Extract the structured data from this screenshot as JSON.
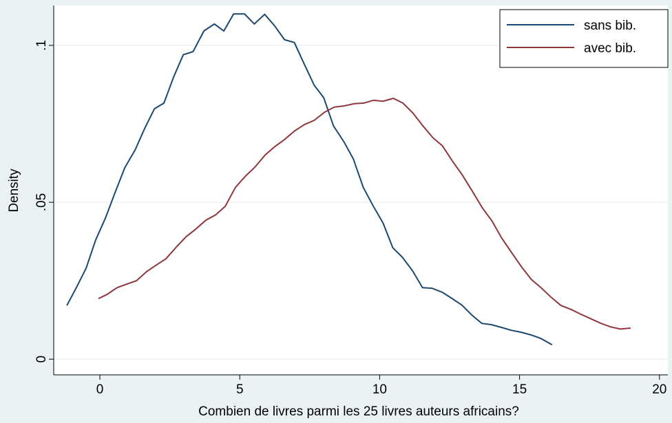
{
  "chart_data": {
    "type": "line",
    "x_label": "Combien de livres parmi les 25 livres auteurs africains?",
    "y_label": "Density",
    "xlim": [
      -1.65,
      20.3
    ],
    "xticks": [
      0,
      5,
      10,
      15,
      20
    ],
    "ylim": [
      -0.005,
      0.1127
    ],
    "yticks": [
      0,
      {
        "value": 0.05,
        "label": ".05"
      },
      {
        "value": 0.1,
        "label": ".1"
      }
    ],
    "grid": true,
    "legend": "top-right",
    "series": [
      {
        "name": "sans bib.",
        "color": "#1a476f",
        "x": [
          -1.18,
          -0.84,
          -0.49,
          -0.15,
          0.2,
          0.54,
          0.89,
          1.26,
          1.6,
          1.95,
          2.29,
          2.64,
          2.98,
          3.33,
          3.72,
          4.09,
          4.43,
          4.78,
          5.17,
          5.52,
          5.89,
          6.23,
          6.6,
          6.95,
          7.29,
          7.66,
          8.0,
          8.35,
          8.72,
          9.06,
          9.41,
          9.75,
          10.12,
          10.47,
          10.81,
          11.18,
          11.53,
          11.87,
          12.24,
          12.59,
          12.93,
          13.3,
          13.65,
          13.99,
          14.36,
          14.7,
          15.05,
          15.42,
          15.76,
          16.16
        ],
        "values": [
          0.0171,
          0.0228,
          0.029,
          0.038,
          0.045,
          0.053,
          0.061,
          0.0667,
          0.0735,
          0.0798,
          0.0816,
          0.09,
          0.097,
          0.098,
          0.1046,
          0.1068,
          0.1046,
          0.11,
          0.11,
          0.1068,
          0.1099,
          0.1064,
          0.1018,
          0.1009,
          0.0943,
          0.0873,
          0.0833,
          0.0743,
          0.0693,
          0.0638,
          0.0548,
          0.0491,
          0.0434,
          0.0355,
          0.0325,
          0.0281,
          0.0228,
          0.0226,
          0.0213,
          0.0193,
          0.0173,
          0.014,
          0.0114,
          0.011,
          0.0101,
          0.0092,
          0.0086,
          0.0077,
          0.0066,
          0.0046
        ]
      },
      {
        "name": "avec bib.",
        "color": "#90353b",
        "x": [
          -0.05,
          0.25,
          0.62,
          0.96,
          1.31,
          1.67,
          2.02,
          2.36,
          2.73,
          3.08,
          3.42,
          3.79,
          4.14,
          4.48,
          4.85,
          5.2,
          5.54,
          5.91,
          6.26,
          6.6,
          6.97,
          7.32,
          7.66,
          8.03,
          8.37,
          8.72,
          9.09,
          9.43,
          9.78,
          10.12,
          10.49,
          10.83,
          11.18,
          11.55,
          11.9,
          12.24,
          12.61,
          12.96,
          13.3,
          13.67,
          14.01,
          14.36,
          14.73,
          15.07,
          15.42,
          15.79,
          16.13,
          16.48,
          16.85,
          17.19,
          17.54,
          17.91,
          18.25,
          18.6,
          18.97
        ],
        "values": [
          0.0193,
          0.0206,
          0.0228,
          0.0239,
          0.025,
          0.0279,
          0.03,
          0.032,
          0.0357,
          0.039,
          0.0414,
          0.0443,
          0.046,
          0.0487,
          0.0548,
          0.0583,
          0.0612,
          0.0651,
          0.0678,
          0.07,
          0.0728,
          0.0748,
          0.0761,
          0.0787,
          0.0803,
          0.0807,
          0.0814,
          0.0816,
          0.0825,
          0.0822,
          0.0831,
          0.0816,
          0.0785,
          0.0743,
          0.0706,
          0.068,
          0.063,
          0.0586,
          0.0537,
          0.0482,
          0.0441,
          0.0386,
          0.0338,
          0.0294,
          0.0254,
          0.0226,
          0.0197,
          0.0171,
          0.0158,
          0.0143,
          0.0129,
          0.0114,
          0.0103,
          0.0096,
          0.0099
        ]
      }
    ]
  }
}
